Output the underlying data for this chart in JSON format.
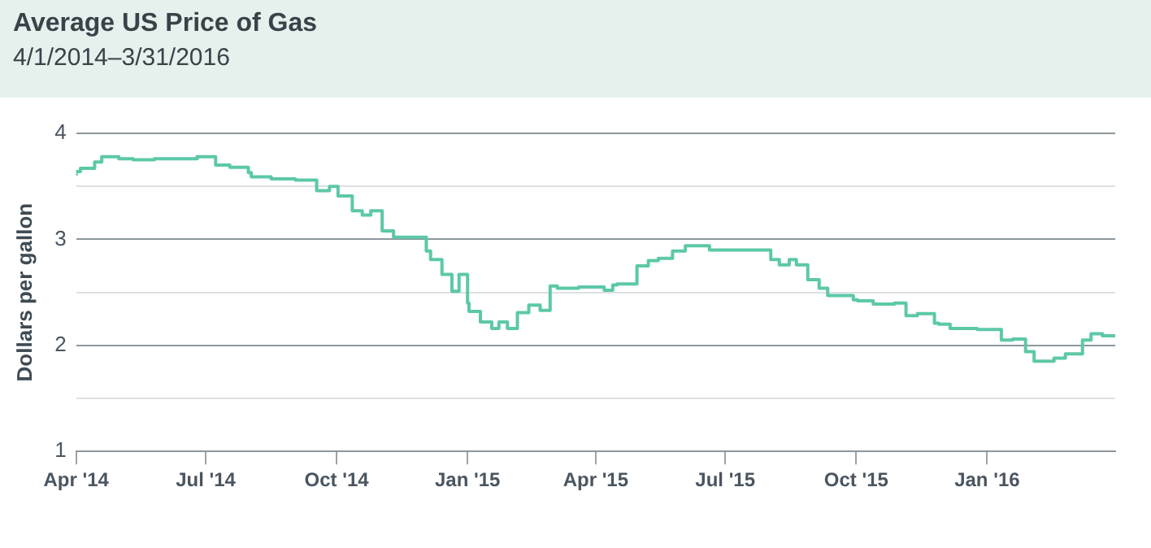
{
  "chart_data": {
    "type": "step",
    "title": "Average US Price of Gas",
    "subtitle": "4/1/2014–3/31/2016",
    "ylabel": "Dollars per gallon",
    "x": [
      "2014-04-01",
      "2014-04-04",
      "2014-04-14",
      "2014-04-19",
      "2014-05-01",
      "2014-05-11",
      "2014-05-26",
      "2014-06-06",
      "2014-06-25",
      "2014-07-08",
      "2014-07-18",
      "2014-07-31",
      "2014-08-02",
      "2014-08-16",
      "2014-09-02",
      "2014-09-17",
      "2014-09-26",
      "2014-10-02",
      "2014-10-12",
      "2014-10-19",
      "2014-10-25",
      "2014-11-02",
      "2014-11-10",
      "2014-11-17",
      "2014-12-03",
      "2014-12-06",
      "2014-12-14",
      "2014-12-21",
      "2014-12-26",
      "2015-01-01",
      "2015-01-02",
      "2015-01-10",
      "2015-01-18",
      "2015-01-23",
      "2015-01-29",
      "2015-02-05",
      "2015-02-13",
      "2015-02-21",
      "2015-02-28",
      "2015-03-05",
      "2015-03-20",
      "2015-04-07",
      "2015-04-13",
      "2015-04-16",
      "2015-04-30",
      "2015-05-08",
      "2015-05-15",
      "2015-05-25",
      "2015-06-03",
      "2015-06-20",
      "2015-07-02",
      "2015-08-02",
      "2015-08-08",
      "2015-08-15",
      "2015-08-20",
      "2015-08-28",
      "2015-09-05",
      "2015-09-11",
      "2015-09-18",
      "2015-09-29",
      "2015-10-02",
      "2015-10-13",
      "2015-10-28",
      "2015-11-05",
      "2015-11-13",
      "2015-11-25",
      "2015-11-28",
      "2015-12-06",
      "2015-12-25",
      "2016-01-11",
      "2016-01-19",
      "2016-01-28",
      "2016-02-03",
      "2016-02-17",
      "2016-02-25",
      "2016-03-08",
      "2016-03-14",
      "2016-03-22",
      "2016-03-31"
    ],
    "series": [
      {
        "color": "#5cc8a8",
        "values": [
          3.6,
          3.64,
          3.67,
          3.73,
          3.78,
          3.76,
          3.75,
          3.76,
          3.76,
          3.78,
          3.7,
          3.68,
          3.63,
          3.59,
          3.57,
          3.56,
          3.46,
          3.5,
          3.41,
          3.27,
          3.23,
          3.27,
          3.08,
          3.02,
          3.02,
          2.89,
          2.81,
          2.67,
          2.51,
          2.67,
          2.4,
          2.32,
          2.22,
          2.16,
          2.22,
          2.16,
          2.31,
          2.38,
          2.33,
          2.56,
          2.54,
          2.55,
          2.52,
          2.57,
          2.58,
          2.75,
          2.8,
          2.82,
          2.89,
          2.94,
          2.9,
          2.9,
          2.81,
          2.76,
          2.81,
          2.76,
          2.62,
          2.54,
          2.47,
          2.47,
          2.43,
          2.42,
          2.39,
          2.4,
          2.28,
          2.3,
          2.21,
          2.2,
          2.16,
          2.15,
          2.05,
          2.06,
          1.94,
          1.85,
          1.88,
          1.92,
          2.05,
          2.11,
          2.09
        ]
      }
    ],
    "xlim": [
      "2014-04-01",
      "2016-03-31"
    ],
    "xticks": [
      {
        "value": "2014-04-01",
        "label": "Apr '14"
      },
      {
        "value": "2014-07-01",
        "label": "Jul '14"
      },
      {
        "value": "2014-10-01",
        "label": "Oct '14"
      },
      {
        "value": "2015-01-01",
        "label": "Jan '15"
      },
      {
        "value": "2015-04-01",
        "label": "Apr '15"
      },
      {
        "value": "2015-07-01",
        "label": "Jul '15"
      },
      {
        "value": "2015-10-01",
        "label": "Oct '15"
      },
      {
        "value": "2016-01-01",
        "label": "Jan '16"
      }
    ],
    "ylim": [
      1,
      4
    ],
    "yticks": [
      1,
      {
        "value": 1.5,
        "label": null
      },
      2,
      {
        "value": 2.5,
        "label": null
      },
      3,
      {
        "value": 3.5,
        "label": null
      },
      4
    ],
    "grid": "y",
    "legend": false,
    "marker": "none",
    "line_style": "solid"
  }
}
